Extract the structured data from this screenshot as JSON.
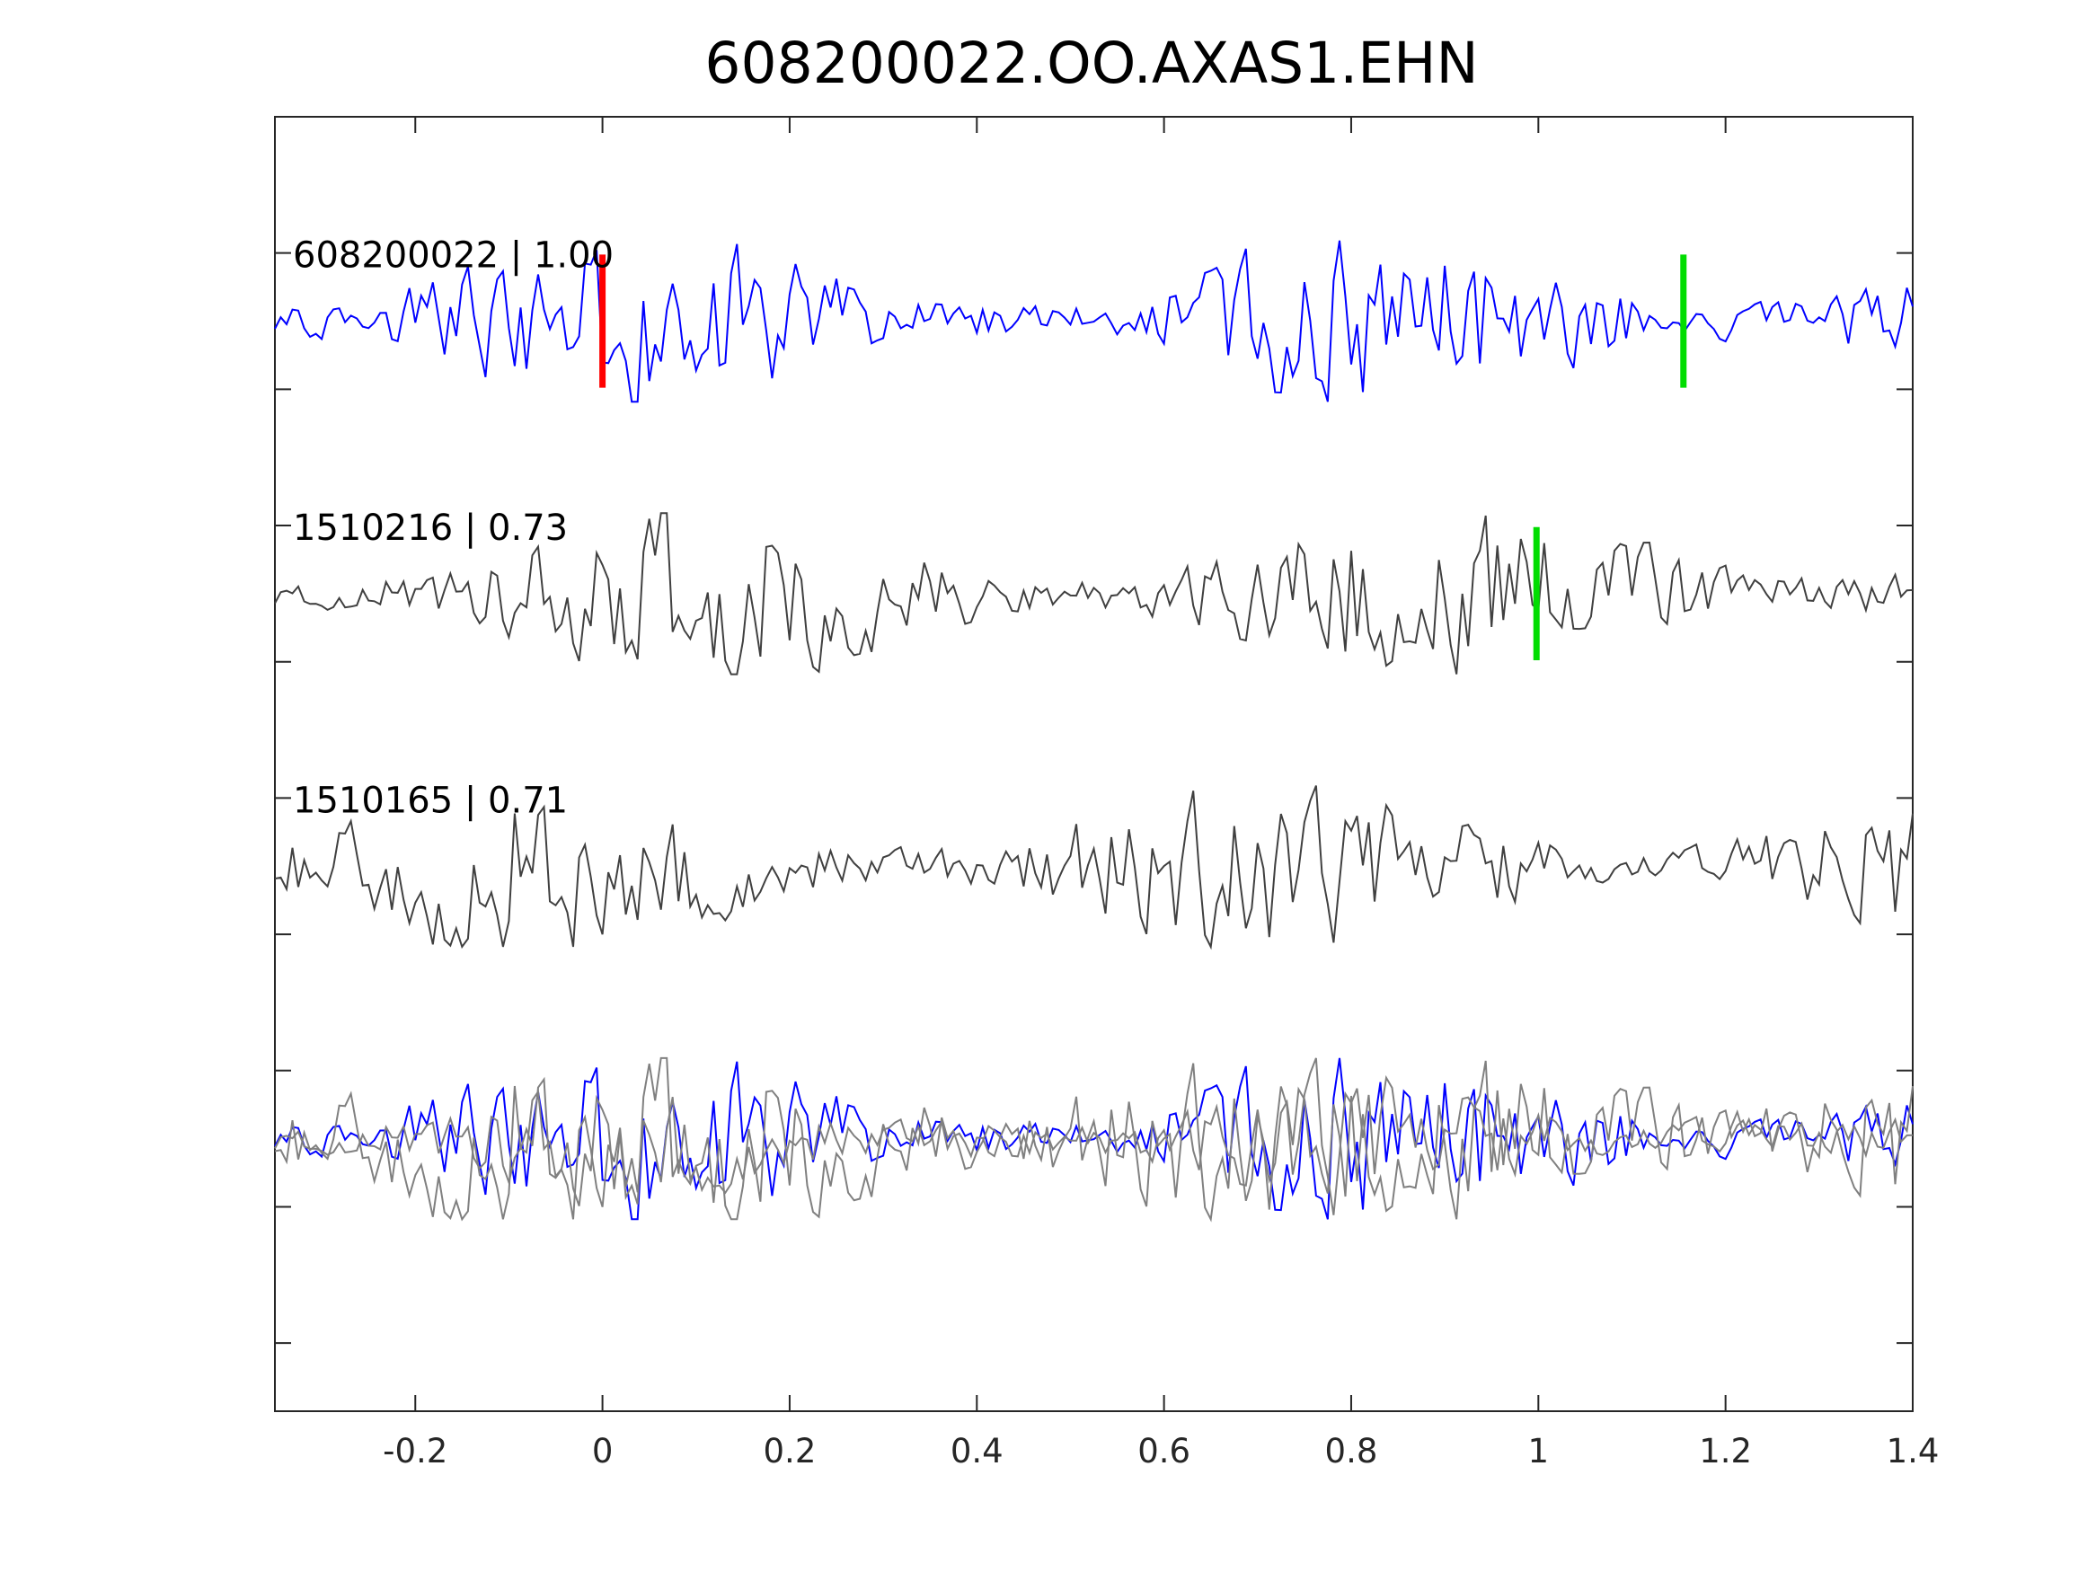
{
  "chart_data": {
    "type": "line",
    "title": "608200022.OO.AXAS1.EHN",
    "xlabel": "",
    "ylabel": "",
    "xlim": [
      -0.35,
      1.4
    ],
    "xticks": [
      -0.2,
      0,
      0.2,
      0.4,
      0.6,
      0.8,
      1,
      1.2,
      1.4
    ],
    "xtick_labels": [
      "-0.2",
      "0",
      "0.2",
      "0.4",
      "0.6",
      "0.8",
      "1",
      "1.2",
      "1.4"
    ],
    "grid": false,
    "y_ticks_count": 9,
    "y_tick_labels_shown": false,
    "sample_step": 0.00625,
    "traces": [
      {
        "label": "608200022 | 1.00",
        "id": "608200022",
        "correlation": 1.0,
        "color": "#0000ff",
        "slot": 0,
        "seed": 11,
        "amplitude": 1.0,
        "markers": [
          {
            "x": 0.0,
            "color": "#ff0000",
            "half_height": 0.5
          },
          {
            "x": 1.155,
            "color": "#00dd00",
            "half_height": 0.5
          }
        ]
      },
      {
        "label": "1510216 | 0.73",
        "id": "1510216",
        "correlation": 0.73,
        "color": "#404040",
        "slot": 1,
        "seed": 23,
        "amplitude": 1.0,
        "markers": [
          {
            "x": 0.998,
            "color": "#00dd00",
            "half_height": 0.5
          }
        ]
      },
      {
        "label": "1510165 | 0.71",
        "id": "1510165",
        "correlation": 0.71,
        "color": "#404040",
        "slot": 2,
        "seed": 37,
        "amplitude": 1.0,
        "markers": []
      },
      {
        "label": "",
        "id": "overlay",
        "color": "#0000ff",
        "gray_color": "#808080",
        "slot": 3,
        "overlay_of": [
          0,
          1,
          2
        ]
      }
    ]
  }
}
